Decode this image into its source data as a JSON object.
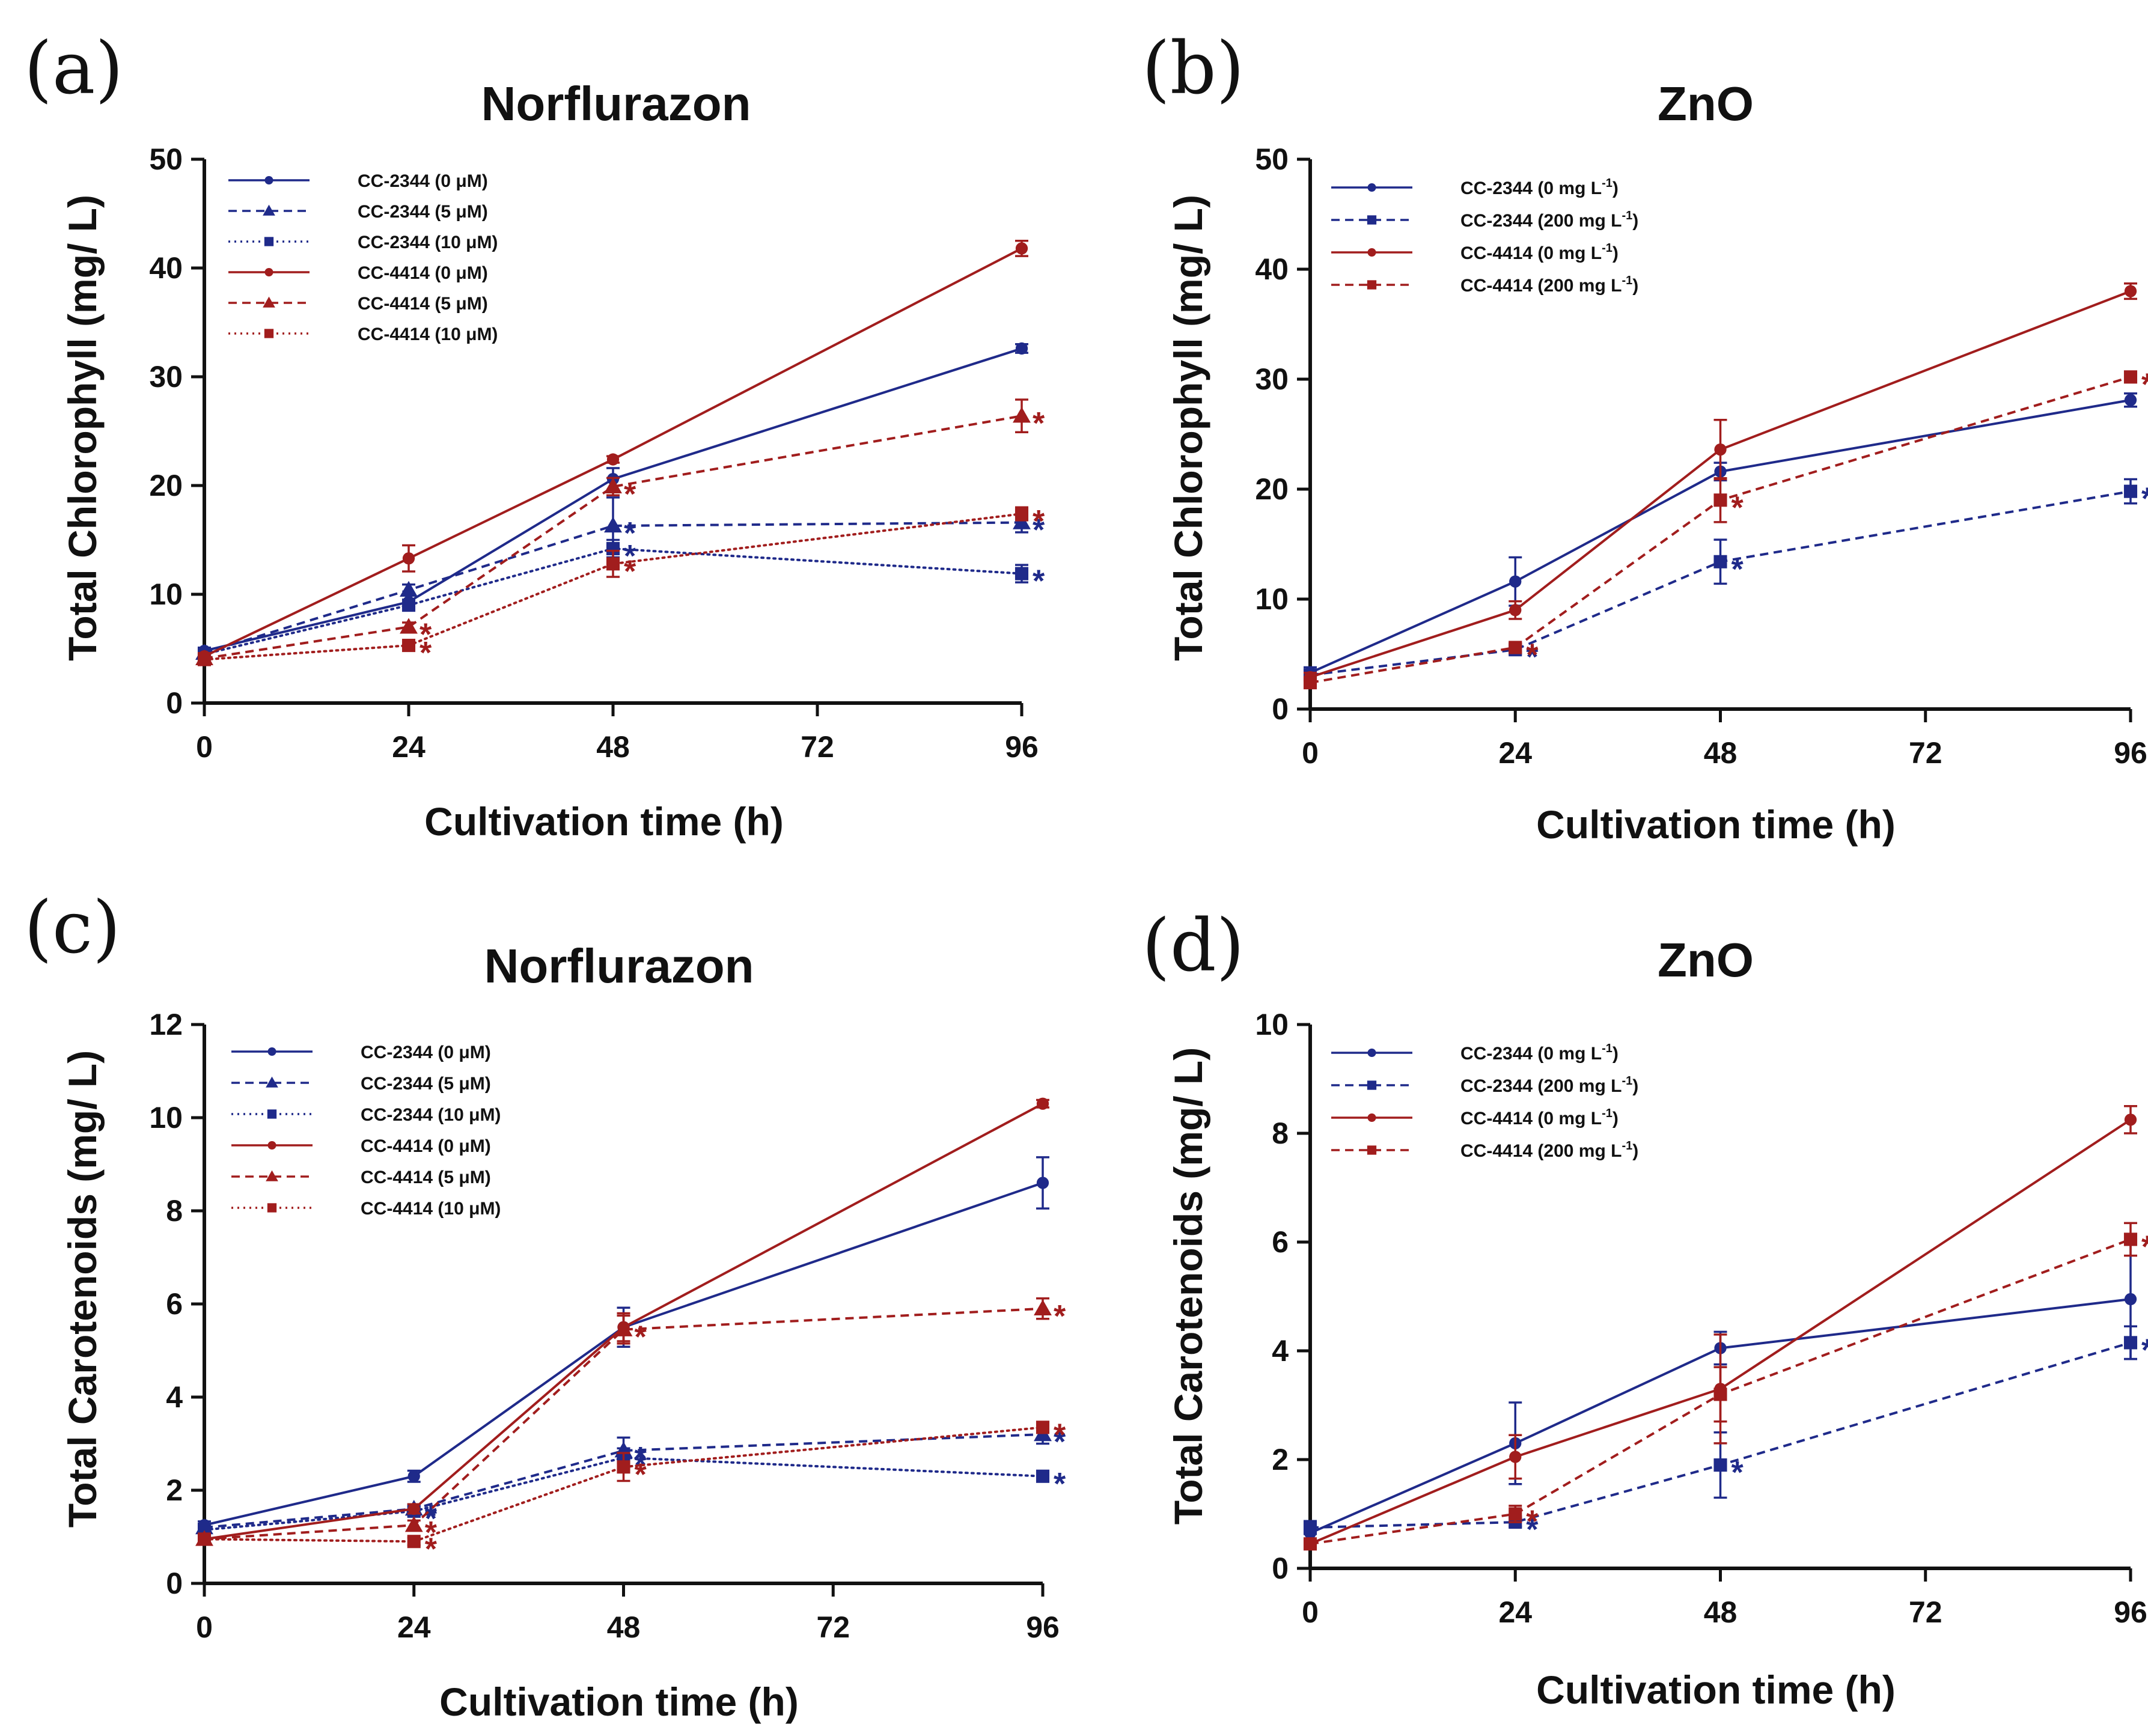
{
  "chart_data": [
    {
      "panel_label": "(a)",
      "type": "line",
      "title": "Norflurazon",
      "xlabel": "Cultivation time (h)",
      "ylabel": "Total Chlorophyll (mg/ L)",
      "xlim": [
        0,
        96
      ],
      "ylim": [
        0,
        50
      ],
      "xticks": [
        "0",
        "24",
        "48",
        "72",
        "96"
      ],
      "yticks": [
        "0",
        "10",
        "20",
        "30",
        "40",
        "50"
      ],
      "grid": false,
      "legend_position": "top-left",
      "x": [
        0,
        24,
        48,
        96
      ],
      "series": [
        {
          "name": "CC-2344  (0 μM)",
          "strain": "CC-2344",
          "color": "#1f2a8a",
          "dash": "solid",
          "marker": "circle",
          "values": [
            4.8,
            9.3,
            20.6,
            32.6
          ],
          "errors": [
            0.3,
            0.6,
            1.0,
            0.4
          ],
          "significant": [
            false,
            false,
            false,
            false
          ]
        },
        {
          "name": "CC-2344  (5 μM)",
          "strain": "CC-2344",
          "color": "#1f2a8a",
          "dash": "dashed",
          "marker": "triangle",
          "values": [
            4.6,
            10.4,
            16.3,
            16.6
          ],
          "errors": [
            0.3,
            0.5,
            2.6,
            0.9
          ],
          "significant": [
            false,
            false,
            true,
            true
          ]
        },
        {
          "name": "CC-2344  (10 μM)",
          "strain": "CC-2344",
          "color": "#1f2a8a",
          "dash": "dotted",
          "marker": "square",
          "values": [
            4.5,
            9.0,
            14.2,
            11.9
          ],
          "errors": [
            0.3,
            0.5,
            0.8,
            0.8
          ],
          "significant": [
            false,
            false,
            true,
            true
          ]
        },
        {
          "name": "CC-4414  (0 μM)",
          "strain": "CC-4414",
          "color": "#a11d1d",
          "dash": "solid",
          "marker": "circle",
          "values": [
            4.3,
            13.3,
            22.4,
            41.8
          ],
          "errors": [
            0.3,
            1.2,
            0.3,
            0.7
          ],
          "significant": [
            false,
            false,
            false,
            false
          ]
        },
        {
          "name": "CC-4414  (5 μM)",
          "strain": "CC-4414",
          "color": "#a11d1d",
          "dash": "dashed",
          "marker": "triangle",
          "values": [
            4.1,
            7.0,
            19.9,
            26.4
          ],
          "errors": [
            0.3,
            0.4,
            0.8,
            1.5
          ],
          "significant": [
            false,
            true,
            true,
            true
          ]
        },
        {
          "name": "CC-4414  (10 μM)",
          "strain": "CC-4414",
          "color": "#a11d1d",
          "dash": "dotted",
          "marker": "square",
          "values": [
            4.0,
            5.3,
            12.8,
            17.4
          ],
          "errors": [
            0.3,
            0.3,
            1.2,
            0.6
          ],
          "significant": [
            false,
            true,
            true,
            true
          ]
        }
      ]
    },
    {
      "panel_label": "(b)",
      "type": "line",
      "title": "ZnO",
      "xlabel": "Cultivation time (h)",
      "ylabel": "Total Chlorophyll (mg/ L)",
      "xlim": [
        0,
        96
      ],
      "ylim": [
        0,
        50
      ],
      "xticks": [
        "0",
        "24",
        "48",
        "72",
        "96"
      ],
      "yticks": [
        "0",
        "10",
        "20",
        "30",
        "40",
        "50"
      ],
      "grid": false,
      "legend_position": "top-left",
      "x": [
        0,
        24,
        48,
        96
      ],
      "series": [
        {
          "name": "CC-2344 (0 mg L-1)",
          "strain": "CC-2344",
          "color": "#1f2a8a",
          "dash": "solid",
          "marker": "circle",
          "values": [
            3.3,
            11.6,
            21.6,
            28.1
          ],
          "errors": [
            0.5,
            2.2,
            0.8,
            0.6
          ],
          "significant": [
            false,
            false,
            false,
            false
          ]
        },
        {
          "name": "CC-2344 (200 mg L-1)",
          "strain": "CC-2344",
          "color": "#1f2a8a",
          "dash": "dashed",
          "marker": "square",
          "values": [
            3.1,
            5.4,
            13.4,
            19.8
          ],
          "errors": [
            0.4,
            0.4,
            2.0,
            1.1
          ],
          "significant": [
            false,
            true,
            true,
            true
          ]
        },
        {
          "name": "CC-4414 (0 mg L-1)",
          "strain": "CC-4414",
          "color": "#a11d1d",
          "dash": "solid",
          "marker": "circle",
          "values": [
            2.9,
            9.0,
            23.6,
            38.0
          ],
          "errors": [
            0.4,
            0.8,
            2.7,
            0.7
          ],
          "significant": [
            false,
            false,
            false,
            false
          ]
        },
        {
          "name": "CC-4414 (200 mg L-1)",
          "strain": "CC-4414",
          "color": "#a11d1d",
          "dash": "dashed",
          "marker": "square",
          "values": [
            2.4,
            5.6,
            19.0,
            30.2
          ],
          "errors": [
            0.4,
            0.4,
            2.0,
            0.4
          ],
          "significant": [
            false,
            true,
            true,
            true
          ]
        }
      ]
    },
    {
      "panel_label": "(c)",
      "type": "line",
      "title": "Norflurazon",
      "xlabel": "Cultivation time (h)",
      "ylabel": "Total Carotenoids (mg/ L)",
      "xlim": [
        0,
        96
      ],
      "ylim": [
        0,
        12
      ],
      "xticks": [
        "0",
        "24",
        "48",
        "72",
        "96"
      ],
      "yticks": [
        "0",
        "2",
        "4",
        "6",
        "8",
        "10",
        "12"
      ],
      "grid": false,
      "legend_position": "top-left",
      "x": [
        0,
        24,
        48,
        96
      ],
      "series": [
        {
          "name": "CC-2344  (0 μM)",
          "strain": "CC-2344",
          "color": "#1f2a8a",
          "dash": "solid",
          "marker": "circle",
          "values": [
            1.25,
            2.3,
            5.5,
            8.6
          ],
          "errors": [
            0.08,
            0.12,
            0.42,
            0.55
          ],
          "significant": [
            false,
            false,
            false,
            false
          ]
        },
        {
          "name": "CC-2344  (5 μM)",
          "strain": "CC-2344",
          "color": "#1f2a8a",
          "dash": "dashed",
          "marker": "triangle",
          "values": [
            1.2,
            1.6,
            2.85,
            3.2
          ],
          "errors": [
            0.08,
            0.1,
            0.28,
            0.2
          ],
          "significant": [
            false,
            true,
            true,
            true
          ]
        },
        {
          "name": "CC-2344  (10 μM)",
          "strain": "CC-2344",
          "color": "#1f2a8a",
          "dash": "dotted",
          "marker": "square",
          "values": [
            1.15,
            1.55,
            2.7,
            2.3
          ],
          "errors": [
            0.08,
            0.1,
            0.2,
            0.1
          ],
          "significant": [
            false,
            true,
            true,
            true
          ]
        },
        {
          "name": "CC-4414  (0 μM)",
          "strain": "CC-4414",
          "color": "#a11d1d",
          "dash": "solid",
          "marker": "circle",
          "values": [
            0.95,
            1.6,
            5.5,
            10.3
          ],
          "errors": [
            0.08,
            0.1,
            0.3,
            0.08
          ],
          "significant": [
            false,
            false,
            false,
            false
          ]
        },
        {
          "name": "CC-4414  (5 μM)",
          "strain": "CC-4414",
          "color": "#a11d1d",
          "dash": "dashed",
          "marker": "triangle",
          "values": [
            0.95,
            1.25,
            5.45,
            5.9
          ],
          "errors": [
            0.08,
            0.1,
            0.3,
            0.22
          ],
          "significant": [
            false,
            true,
            true,
            true
          ]
        },
        {
          "name": "CC-4414  (10 μM)",
          "strain": "CC-4414",
          "color": "#a11d1d",
          "dash": "dotted",
          "marker": "square",
          "values": [
            0.95,
            0.9,
            2.5,
            3.35
          ],
          "errors": [
            0.08,
            0.08,
            0.3,
            0.12
          ],
          "significant": [
            false,
            true,
            true,
            true
          ]
        }
      ]
    },
    {
      "panel_label": "(d)",
      "type": "line",
      "title": "ZnO",
      "xlabel": "Cultivation time (h)",
      "ylabel": "Total Carotenoids (mg/ L)",
      "xlim": [
        0,
        96
      ],
      "ylim": [
        0,
        10
      ],
      "xticks": [
        "0",
        "24",
        "48",
        "72",
        "96"
      ],
      "yticks": [
        "0",
        "2",
        "4",
        "6",
        "8",
        "10"
      ],
      "grid": false,
      "legend_position": "top-left",
      "x": [
        0,
        24,
        48,
        96
      ],
      "series": [
        {
          "name": "CC-2344 (0 mg L-1)",
          "strain": "CC-2344",
          "color": "#1f2a8a",
          "dash": "solid",
          "marker": "circle",
          "values": [
            0.65,
            2.3,
            4.05,
            4.95
          ],
          "errors": [
            0.1,
            0.75,
            0.3,
            1.1
          ],
          "significant": [
            false,
            false,
            false,
            false
          ]
        },
        {
          "name": "CC-2344 (200 mg L-1)",
          "strain": "CC-2344",
          "color": "#1f2a8a",
          "dash": "dashed",
          "marker": "square",
          "values": [
            0.75,
            0.85,
            1.9,
            4.15
          ],
          "errors": [
            0.12,
            0.08,
            0.6,
            0.3
          ],
          "significant": [
            false,
            true,
            true,
            true
          ]
        },
        {
          "name": "CC-4414 (0 mg L-1)",
          "strain": "CC-4414",
          "color": "#a11d1d",
          "dash": "solid",
          "marker": "circle",
          "values": [
            0.45,
            2.05,
            3.3,
            8.25
          ],
          "errors": [
            0.08,
            0.4,
            1.0,
            0.25
          ],
          "significant": [
            false,
            false,
            false,
            false
          ]
        },
        {
          "name": "CC-4414 (200 mg L-1)",
          "strain": "CC-4414",
          "color": "#a11d1d",
          "dash": "dashed",
          "marker": "square",
          "values": [
            0.45,
            1.0,
            3.2,
            6.05
          ],
          "errors": [
            0.08,
            0.15,
            0.5,
            0.3
          ],
          "significant": [
            false,
            true,
            false,
            true
          ]
        }
      ]
    }
  ]
}
